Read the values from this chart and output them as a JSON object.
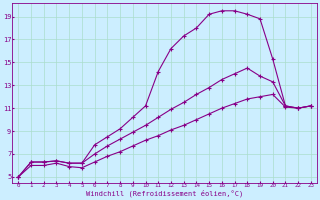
{
  "xlabel": "Windchill (Refroidissement éolien,°C)",
  "bg_color": "#cceeff",
  "grid_color": "#aaddcc",
  "line_color": "#880088",
  "xlim": [
    -0.5,
    23.5
  ],
  "ylim": [
    4.5,
    20.2
  ],
  "yticks": [
    5,
    7,
    9,
    11,
    13,
    15,
    17,
    19
  ],
  "xticks": [
    0,
    1,
    2,
    3,
    4,
    5,
    6,
    7,
    8,
    9,
    10,
    11,
    12,
    13,
    14,
    15,
    16,
    17,
    18,
    19,
    20,
    21,
    22,
    23
  ],
  "line1_x": [
    0,
    1,
    2,
    3,
    4,
    5,
    6,
    7,
    8,
    9,
    10,
    11,
    12,
    13,
    14,
    15,
    16,
    17,
    18,
    19,
    20,
    21,
    22,
    23
  ],
  "line1_y": [
    5.0,
    6.3,
    6.3,
    6.4,
    6.2,
    6.2,
    7.8,
    8.5,
    9.2,
    10.2,
    11.2,
    14.2,
    16.2,
    17.3,
    18.0,
    19.2,
    19.5,
    19.5,
    19.2,
    18.8,
    15.3,
    11.2,
    11.0,
    11.2
  ],
  "line2_x": [
    0,
    1,
    2,
    3,
    4,
    5,
    6,
    7,
    8,
    9,
    10,
    11,
    12,
    13,
    14,
    15,
    16,
    17,
    18,
    19,
    20,
    21,
    22,
    23
  ],
  "line2_y": [
    5.0,
    6.3,
    6.3,
    6.4,
    6.2,
    6.2,
    7.0,
    7.7,
    8.3,
    8.9,
    9.5,
    10.2,
    10.9,
    11.5,
    12.2,
    12.8,
    13.5,
    14.0,
    14.5,
    13.8,
    13.3,
    11.2,
    11.0,
    11.2
  ],
  "line3_x": [
    0,
    1,
    2,
    3,
    4,
    5,
    6,
    7,
    8,
    9,
    10,
    11,
    12,
    13,
    14,
    15,
    16,
    17,
    18,
    19,
    20,
    21,
    22,
    23
  ],
  "line3_y": [
    5.0,
    6.0,
    6.0,
    6.2,
    5.9,
    5.8,
    6.3,
    6.8,
    7.2,
    7.7,
    8.2,
    8.6,
    9.1,
    9.5,
    10.0,
    10.5,
    11.0,
    11.4,
    11.8,
    12.0,
    12.2,
    11.1,
    11.0,
    11.2
  ]
}
